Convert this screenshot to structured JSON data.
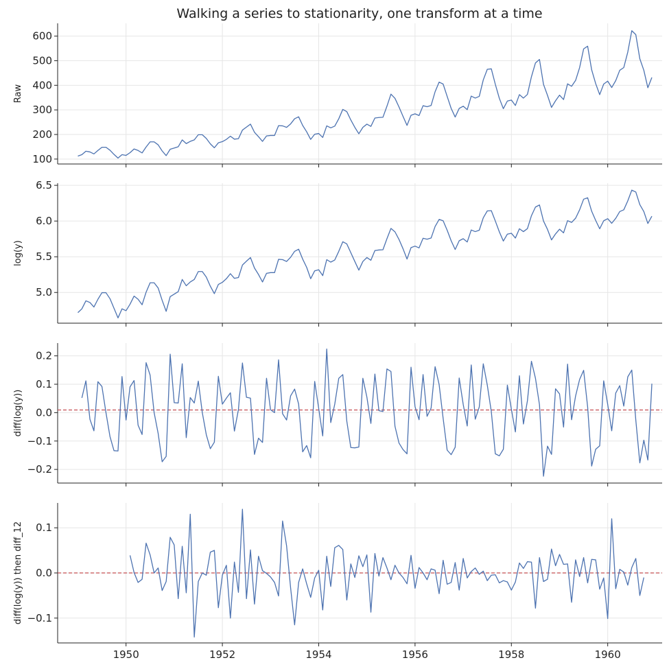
{
  "chart_data": {
    "type": "line",
    "title": "Walking a series to stationarity, one transform at a time",
    "x_ticks": [
      "1950",
      "1952",
      "1954",
      "1956",
      "1958",
      "1960"
    ],
    "x_start": "1949-01",
    "x_step": "month",
    "xlim": [
      1948.58,
      1961.13
    ],
    "grid": true,
    "line_color": "#4c72b0",
    "reference_line_color": "#c44e52",
    "panels": [
      {
        "ylabel": "Raw",
        "ylim": [
          80,
          652
        ],
        "yticks": [
          100,
          200,
          300,
          400,
          500,
          600
        ],
        "ytick_labels": [
          "100",
          "200",
          "300",
          "400",
          "500",
          "600"
        ],
        "x_offset_months": 0,
        "values": [
          112,
          118,
          132,
          129,
          121,
          135,
          148,
          148,
          136,
          119,
          104,
          118,
          115,
          126,
          141,
          135,
          125,
          149,
          170,
          170,
          158,
          133,
          114,
          140,
          145,
          150,
          178,
          163,
          172,
          178,
          199,
          199,
          184,
          162,
          146,
          166,
          171,
          180,
          193,
          181,
          183,
          218,
          230,
          242,
          209,
          191,
          172,
          194,
          196,
          196,
          236,
          235,
          229,
          243,
          264,
          272,
          237,
          211,
          180,
          201,
          204,
          188,
          235,
          227,
          234,
          264,
          302,
          293,
          259,
          229,
          203,
          229,
          242,
          233,
          267,
          269,
          270,
          315,
          364,
          347,
          312,
          274,
          237,
          278,
          284,
          277,
          317,
          313,
          318,
          374,
          413,
          405,
          355,
          306,
          271,
          306,
          315,
          301,
          356,
          348,
          355,
          422,
          465,
          467,
          404,
          347,
          305,
          336,
          340,
          318,
          362,
          348,
          363,
          435,
          491,
          505,
          404,
          359,
          310,
          337,
          360,
          342,
          406,
          396,
          420,
          472,
          548,
          559,
          463,
          407,
          362,
          405,
          417,
          391,
          419,
          461,
          472,
          535,
          622,
          606,
          508,
          461,
          390,
          432
        ]
      },
      {
        "ylabel": "log(y)",
        "ylim": [
          4.57,
          6.53
        ],
        "yticks": [
          5.0,
          5.5,
          6.0,
          6.5
        ],
        "ytick_labels": [
          "5.0",
          "5.5",
          "6.0",
          "6.5"
        ],
        "x_offset_months": 0,
        "values": [
          4.718,
          4.771,
          4.883,
          4.86,
          4.796,
          4.905,
          4.997,
          4.997,
          4.913,
          4.779,
          4.644,
          4.771,
          4.745,
          4.836,
          4.949,
          4.905,
          4.828,
          5.004,
          5.136,
          5.136,
          5.063,
          4.89,
          4.736,
          4.942,
          4.977,
          5.011,
          5.182,
          5.094,
          5.147,
          5.182,
          5.293,
          5.293,
          5.215,
          5.088,
          4.984,
          5.112,
          5.142,
          5.193,
          5.263,
          5.198,
          5.209,
          5.384,
          5.438,
          5.489,
          5.342,
          5.252,
          5.147,
          5.268,
          5.278,
          5.278,
          5.464,
          5.46,
          5.434,
          5.493,
          5.576,
          5.606,
          5.468,
          5.352,
          5.193,
          5.303,
          5.318,
          5.236,
          5.46,
          5.425,
          5.455,
          5.576,
          5.71,
          5.68,
          5.557,
          5.434,
          5.313,
          5.434,
          5.489,
          5.451,
          5.587,
          5.595,
          5.598,
          5.753,
          5.897,
          5.849,
          5.743,
          5.613,
          5.468,
          5.628,
          5.649,
          5.624,
          5.759,
          5.746,
          5.762,
          5.924,
          6.023,
          6.004,
          5.872,
          5.724,
          5.602,
          5.724,
          5.753,
          5.707,
          5.875,
          5.852,
          5.872,
          6.045,
          6.142,
          6.146,
          6.001,
          5.849,
          5.72,
          5.817,
          5.829,
          5.762,
          5.892,
          5.852,
          5.894,
          6.075,
          6.196,
          6.225,
          6.001,
          5.883,
          5.736,
          5.82,
          5.886,
          5.835,
          6.006,
          5.981,
          6.04,
          6.157,
          6.306,
          6.326,
          6.138,
          6.009,
          5.892,
          6.004,
          6.033,
          5.969,
          6.038,
          6.133,
          6.157,
          6.283,
          6.433,
          6.407,
          6.23,
          6.133,
          5.966,
          6.068
        ]
      },
      {
        "ylabel": "diff(log(y))",
        "ylim": [
          -0.248,
          0.245
        ],
        "yticks": [
          -0.2,
          -0.1,
          0.0,
          0.1,
          0.2
        ],
        "ytick_labels": [
          "−0.2",
          "−0.1",
          "0.0",
          "0.1",
          "0.2"
        ],
        "x_offset_months": 1,
        "reference_line": 0.0094,
        "values": [
          0.052,
          0.112,
          -0.023,
          -0.064,
          0.109,
          0.092,
          0.0,
          -0.084,
          -0.134,
          -0.135,
          0.127,
          -0.026,
          0.091,
          0.113,
          -0.044,
          -0.077,
          0.176,
          0.132,
          0.0,
          -0.073,
          -0.173,
          -0.154,
          0.206,
          0.035,
          0.034,
          0.172,
          -0.088,
          0.053,
          0.034,
          0.111,
          0.0,
          -0.078,
          -0.127,
          -0.104,
          0.128,
          0.03,
          0.051,
          0.07,
          -0.065,
          0.011,
          0.175,
          0.054,
          0.051,
          -0.147,
          -0.09,
          -0.105,
          0.121,
          0.01,
          0.0,
          0.186,
          -0.004,
          -0.026,
          0.059,
          0.083,
          0.03,
          -0.138,
          -0.116,
          -0.159,
          0.11,
          0.015,
          -0.082,
          0.224,
          -0.035,
          0.03,
          0.121,
          0.134,
          -0.03,
          -0.123,
          -0.124,
          -0.121,
          0.121,
          0.055,
          -0.038,
          0.136,
          0.007,
          0.004,
          0.154,
          0.145,
          -0.048,
          -0.107,
          -0.13,
          -0.145,
          0.16,
          0.021,
          -0.025,
          0.134,
          -0.013,
          0.016,
          0.162,
          0.099,
          -0.02,
          -0.132,
          -0.148,
          -0.122,
          0.122,
          0.029,
          -0.047,
          0.168,
          -0.023,
          0.02,
          0.172,
          0.097,
          0.004,
          -0.145,
          -0.152,
          -0.129,
          0.097,
          0.012,
          -0.068,
          0.13,
          -0.04,
          0.042,
          0.181,
          0.121,
          0.028,
          -0.224,
          -0.118,
          -0.147,
          0.084,
          0.066,
          -0.051,
          0.171,
          -0.025,
          0.059,
          0.117,
          0.149,
          0.02,
          -0.188,
          -0.129,
          -0.117,
          0.112,
          0.029,
          -0.064,
          0.069,
          0.095,
          0.023,
          0.126,
          0.15,
          -0.026,
          -0.177,
          -0.097,
          -0.167,
          0.102
        ]
      },
      {
        "ylabel": "diff(log(y)) then diff_12",
        "ylim": [
          -0.155,
          0.155
        ],
        "yticks": [
          -0.1,
          0.0,
          0.1
        ],
        "ytick_labels": [
          "−0.1",
          "0.0",
          "0.1"
        ],
        "x_offset_months": 13,
        "reference_line": 0.0,
        "values": [
          0.039,
          0.001,
          -0.021,
          -0.014,
          0.066,
          0.04,
          0.0,
          0.011,
          -0.039,
          -0.019,
          0.079,
          0.062,
          -0.057,
          0.059,
          -0.044,
          0.13,
          -0.142,
          -0.019,
          0.0,
          -0.005,
          0.046,
          0.05,
          -0.077,
          -0.005,
          0.017,
          -0.1,
          0.024,
          -0.043,
          0.141,
          -0.057,
          0.051,
          -0.069,
          0.037,
          0.005,
          -0.001,
          -0.009,
          -0.021,
          -0.051,
          0.115,
          0.06,
          -0.033,
          -0.115,
          -0.021,
          0.009,
          -0.024,
          -0.054,
          -0.011,
          0.006,
          -0.082,
          0.037,
          -0.03,
          0.056,
          0.061,
          0.052,
          -0.06,
          0.02,
          -0.01,
          0.038,
          0.014,
          0.04,
          -0.087,
          0.043,
          -0.007,
          0.034,
          0.011,
          -0.015,
          0.017,
          0.0,
          -0.01,
          -0.024,
          0.039,
          -0.034,
          0.012,
          0.0,
          -0.015,
          0.009,
          0.006,
          -0.046,
          0.028,
          -0.025,
          -0.021,
          0.023,
          -0.038,
          0.032,
          -0.011,
          0.003,
          0.011,
          -0.003,
          0.004,
          -0.017,
          -0.005,
          -0.004,
          -0.022,
          -0.017,
          -0.02,
          -0.038,
          -0.02,
          0.022,
          0.01,
          0.025,
          0.024,
          -0.078,
          0.034,
          -0.019,
          -0.014,
          0.053,
          0.016,
          0.041,
          0.019,
          0.02,
          -0.065,
          0.029,
          -0.008,
          0.034,
          -0.022,
          0.03,
          0.029,
          -0.036,
          -0.011,
          -0.101,
          0.12,
          -0.035,
          0.008,
          0.002,
          -0.027,
          0.012,
          0.032,
          -0.05,
          -0.01
        ]
      }
    ]
  }
}
